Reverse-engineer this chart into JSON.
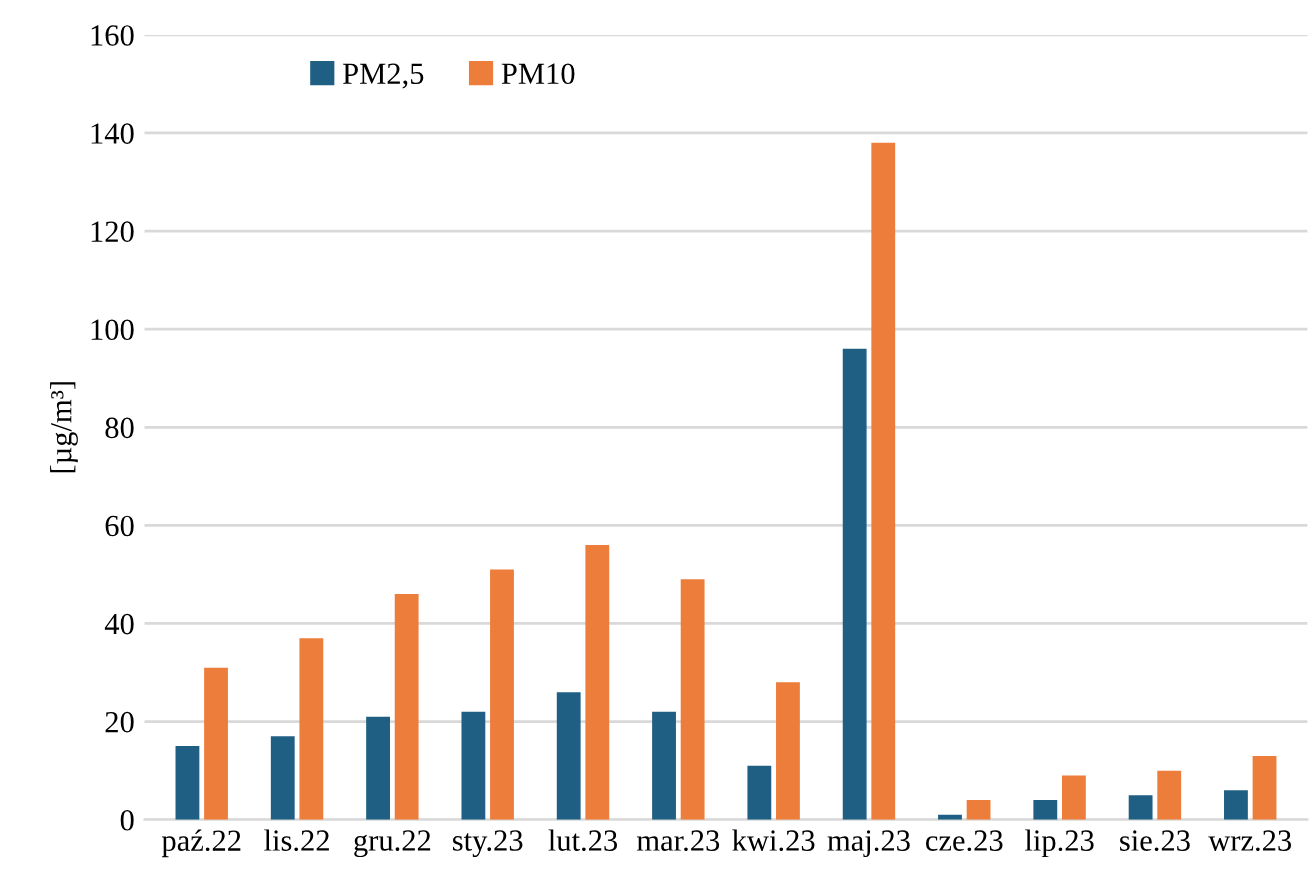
{
  "chart_data": {
    "type": "bar",
    "ylabel": "[µg/m³]",
    "categories": [
      "paź.22",
      "lis.22",
      "gru.22",
      "sty.23",
      "lut.23",
      "mar.23",
      "kwi.23",
      "maj.23",
      "cze.23",
      "lip.23",
      "sie.23",
      "wrz.23"
    ],
    "series": [
      {
        "name": "PM2,5",
        "color": "#1f5f83",
        "values": [
          15,
          17,
          21,
          22,
          26,
          22,
          11,
          96,
          1,
          4,
          5,
          6
        ]
      },
      {
        "name": "PM10",
        "color": "#ed7d3a",
        "values": [
          31,
          37,
          46,
          51,
          56,
          49,
          28,
          138,
          4,
          9,
          10,
          13
        ]
      }
    ],
    "ylim": [
      0,
      160
    ],
    "yticks": [
      0,
      20,
      40,
      60,
      80,
      100,
      120,
      140,
      160
    ],
    "grid": "y",
    "legend": "top left"
  }
}
